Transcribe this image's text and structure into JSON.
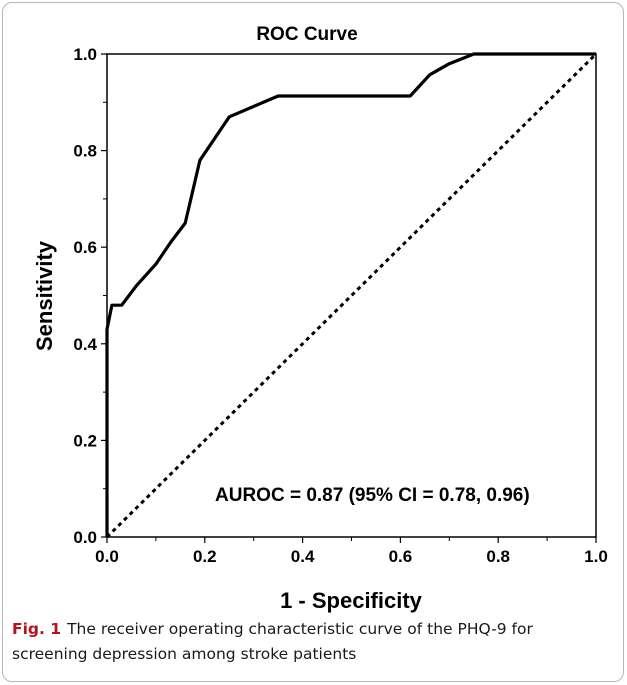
{
  "chart_data": {
    "type": "line",
    "title": "ROC Curve",
    "xlabel": "1 - Specificity",
    "ylabel": "Sensitivity",
    "xlim": [
      0,
      1
    ],
    "ylim": [
      0,
      1
    ],
    "x_ticks": [
      "0.0",
      "0.2",
      "0.4",
      "0.6",
      "0.8",
      "1.0"
    ],
    "y_ticks": [
      "0.0",
      "0.2",
      "0.4",
      "0.6",
      "0.8",
      "1.0"
    ],
    "grid": false,
    "series": [
      {
        "style": "solid",
        "x": [
          0,
          0,
          0.01,
          0.03,
          0.06,
          0.1,
          0.13,
          0.16,
          0.19,
          0.25,
          0.35,
          0.62,
          0.66,
          0.7,
          0.75,
          1.0
        ],
        "y": [
          0,
          0.43,
          0.48,
          0.48,
          0.52,
          0.565,
          0.61,
          0.65,
          0.78,
          0.87,
          0.913,
          0.913,
          0.957,
          0.98,
          1.0,
          1.0
        ]
      },
      {
        "style": "dotted",
        "x": [
          0,
          1
        ],
        "y": [
          0,
          1
        ]
      }
    ],
    "annotations": [
      "AUROC = 0.87 (95% CI = 0.78, 0.96)"
    ]
  },
  "caption": {
    "label": "Fig. 1",
    "text": "The receiver operating characteristic curve of the PHQ-9 for screening depression among stroke patients"
  }
}
